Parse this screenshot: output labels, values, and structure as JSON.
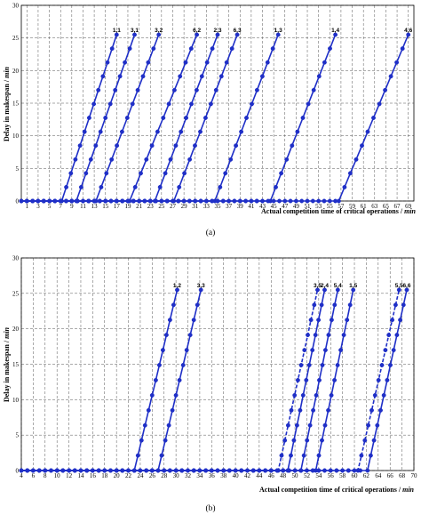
{
  "chart_data": [
    {
      "type": "line",
      "caption": "(a)",
      "ylabel": "Delay in makespan / ",
      "ylabel_unit": "min",
      "xlabel": "Actual competition time of critical operations / ",
      "xlabel_unit": "min",
      "x_ticks": [
        1,
        3,
        5,
        7,
        9,
        11,
        13,
        15,
        17,
        19,
        21,
        23,
        25,
        27,
        29,
        31,
        33,
        35,
        37,
        39,
        41,
        43,
        45,
        47,
        49,
        51,
        53,
        55,
        57,
        59,
        61,
        63,
        65,
        67,
        69
      ],
      "xlim": [
        0,
        70
      ],
      "y_ticks": [
        0,
        5,
        10,
        15,
        20,
        25,
        30
      ],
      "ylim": [
        0,
        30
      ],
      "grid": true,
      "color": "#1f2fc7",
      "series": [
        {
          "name": "1,1",
          "start": 7.2,
          "end": 17,
          "x0": 0,
          "style": "solid"
        },
        {
          "name": "3,1",
          "start": 9.8,
          "end": 20.2,
          "x0": 0,
          "style": "solid"
        },
        {
          "name": "3,2",
          "start": 13.3,
          "end": 24.5,
          "x0": 0,
          "style": "solid"
        },
        {
          "name": "6,2",
          "start": 19.3,
          "end": 31.3,
          "x0": 0,
          "style": "solid"
        },
        {
          "name": "2,3",
          "start": 23.8,
          "end": 35,
          "x0": 0,
          "style": "solid"
        },
        {
          "name": "6,3",
          "start": 27.2,
          "end": 38.5,
          "x0": 0,
          "style": "solid"
        },
        {
          "name": "1,3",
          "start": 34.5,
          "end": 45.8,
          "x0": 0,
          "style": "solid"
        },
        {
          "name": "1,4",
          "start": 44.4,
          "end": 56,
          "x0": 0,
          "style": "solid"
        },
        {
          "name": "4,6",
          "start": 56.6,
          "end": 69,
          "x0": 0,
          "style": "solid"
        }
      ]
    },
    {
      "type": "line",
      "caption": "(b)",
      "ylabel": "Delay in makespan / ",
      "ylabel_unit": "min",
      "xlabel": "Actual competition time of critical operations / ",
      "xlabel_unit": "min",
      "x_ticks": [
        4,
        6,
        8,
        10,
        12,
        14,
        16,
        18,
        20,
        22,
        24,
        26,
        28,
        30,
        32,
        34,
        36,
        38,
        40,
        42,
        44,
        46,
        48,
        50,
        52,
        54,
        56,
        58,
        60,
        62,
        64,
        66,
        68,
        70
      ],
      "xlim": [
        4,
        70
      ],
      "y_ticks": [
        0,
        5,
        10,
        15,
        20,
        25,
        30
      ],
      "ylim": [
        0,
        30
      ],
      "grid": true,
      "color": "#1f2fc7",
      "series": [
        {
          "name": "1,2",
          "start": 23,
          "end": 30.2,
          "x0": 4,
          "style": "solid"
        },
        {
          "name": "3,3",
          "start": 27,
          "end": 34.2,
          "x0": 4,
          "style": "solid"
        },
        {
          "name": "3,5",
          "start": 47.2,
          "end": 53.8,
          "x0": 4,
          "style": "dashed"
        },
        {
          "name": "2,4",
          "start": 48.8,
          "end": 55,
          "x0": 4,
          "style": "solid"
        },
        {
          "name": "5,4",
          "start": 51,
          "end": 57.2,
          "x0": 4,
          "style": "solid"
        },
        {
          "name": "1,5",
          "start": 53.5,
          "end": 59.8,
          "x0": 4,
          "style": "solid"
        },
        {
          "name": "5,5",
          "start": 60.6,
          "end": 67.5,
          "x0": 4,
          "style": "dashed"
        },
        {
          "name": "6,6",
          "start": 62.2,
          "end": 68.8,
          "x0": 4,
          "style": "solid"
        }
      ]
    }
  ]
}
